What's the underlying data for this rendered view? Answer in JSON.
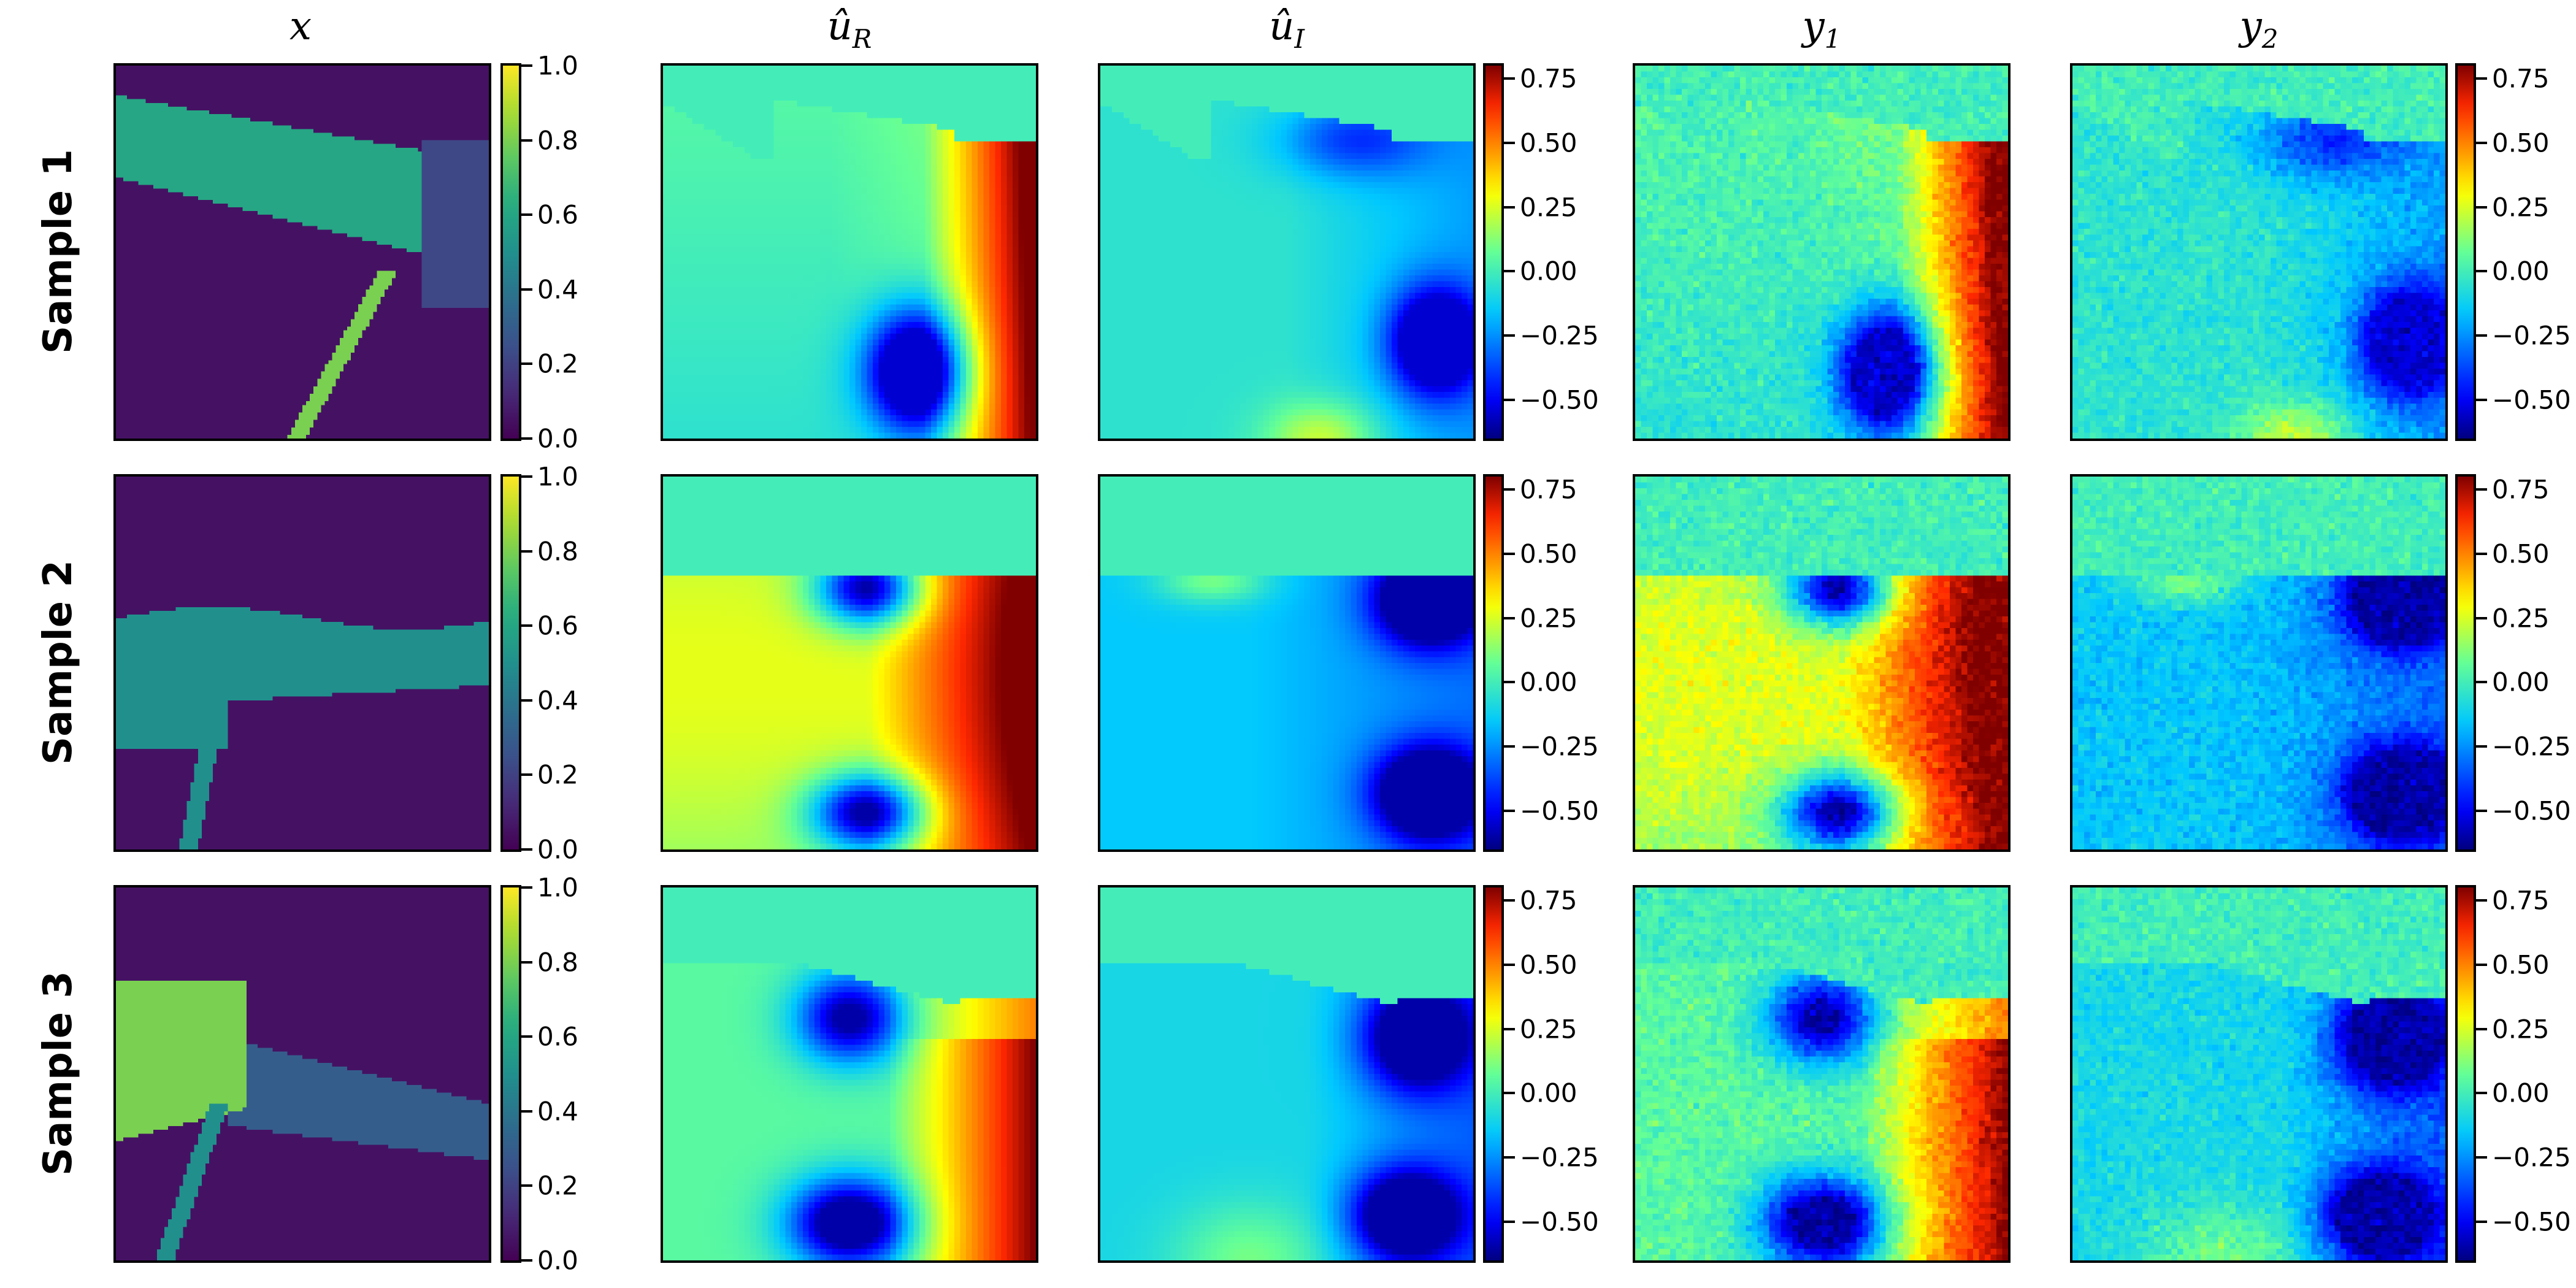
{
  "columns": {
    "x": "x",
    "uR_base": "û",
    "uR_sub": "R",
    "uI_base": "û",
    "uI_sub": "I",
    "y1_base": "y",
    "y1_sub": "1",
    "y2_base": "y",
    "y2_sub": "2"
  },
  "rows": [
    "Sample 1",
    "Sample 2",
    "Sample 3"
  ],
  "colorbars": {
    "viridis": {
      "colormap": "viridis",
      "range": [
        0.0,
        1.0
      ],
      "ticks": [
        0.0,
        0.2,
        0.4,
        0.6,
        0.8,
        1.0
      ],
      "tick_labels": [
        "0.0",
        "0.2",
        "0.4",
        "0.6",
        "0.8",
        "1.0"
      ]
    },
    "jet": {
      "colormap": "jet",
      "range": [
        -0.65,
        0.8
      ],
      "ticks": [
        -0.5,
        -0.25,
        0.0,
        0.25,
        0.5,
        0.75
      ],
      "tick_labels": [
        "−0.50",
        "−0.25",
        "0.00",
        "0.25",
        "0.50",
        "0.75"
      ]
    }
  },
  "chart_data": {
    "type": "heatmap",
    "grid": "3 rows × 5 columns of image panels",
    "samples": [
      {
        "name": "Sample 1",
        "x_layers": {
          "background": 0.05,
          "upper_band": 0.6,
          "right_block": 0.22,
          "fault_line": 0.8
        },
        "u_range": [
          -0.55,
          0.8
        ],
        "features": "red high-value region on right edge, blue low-value lobe lower middle"
      },
      {
        "name": "Sample 2",
        "x_layers": {
          "background": 0.05,
          "middle_band": 0.5,
          "fault_line": 0.5
        },
        "u_range": [
          -0.6,
          0.8
        ],
        "features": "red high-value region right half, two blue lobes top-middle and bottom"
      },
      {
        "name": "Sample 3",
        "x_layers": {
          "background": 0.05,
          "left_wedge": 0.8,
          "middle_band": 0.3,
          "fault_line": 0.5
        },
        "u_range": [
          -0.6,
          0.8
        ],
        "features": "red high-value region lower right, blue lobes top-middle and bottom"
      }
    ]
  }
}
